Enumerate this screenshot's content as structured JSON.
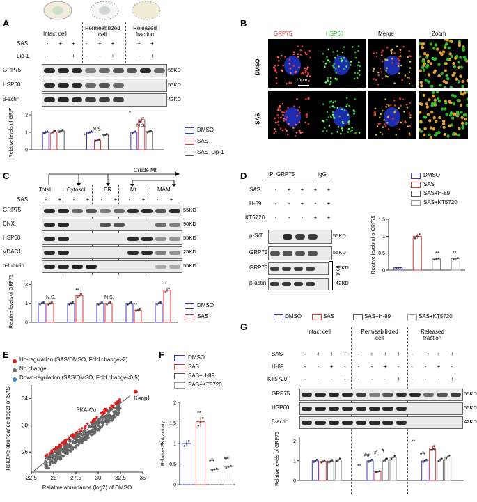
{
  "panelA": {
    "label": "A",
    "groups": [
      "Intact cell",
      "Permeabilized cell",
      "Released fraction"
    ],
    "row_sas": "SAS",
    "row_lip": "Lip-1",
    "sas_marks": [
      "-",
      "+",
      "+",
      "-",
      "+",
      "+",
      "-",
      "+",
      "+"
    ],
    "lip_marks": [
      "-",
      "-",
      "+",
      "-",
      "-",
      "+",
      "-",
      "-",
      "+"
    ],
    "blots": [
      "GRP75",
      "HSP60",
      "β-actin"
    ],
    "kd": [
      "55KD",
      "55KD",
      "42KD"
    ],
    "legend": [
      "DMSO",
      "SAS",
      "SAS+Lip-1"
    ],
    "sig": [
      "*",
      "N.S.",
      "*",
      "N.S."
    ]
  },
  "panelB": {
    "label": "B",
    "columns": [
      "GRP75",
      "HSP60",
      "Merge",
      "Zoom"
    ],
    "rows": [
      "DMSO",
      "SAS"
    ],
    "scale": "10μm"
  },
  "panelC": {
    "label": "C",
    "top": "Crude Mt",
    "groups": [
      "Total",
      "Cytosol",
      "ER",
      "Mt",
      "MAM"
    ],
    "row_sas": "SAS",
    "sas_marks": [
      "-",
      "+",
      "-",
      "+",
      "-",
      "+",
      "-",
      "+",
      "-",
      "+"
    ],
    "blots": [
      "GRP75",
      "CNX",
      "HSP60",
      "VDAC1",
      "α-tubulin"
    ],
    "kd": [
      "55KD",
      "90KD",
      "55KD",
      "25KD",
      "55KD"
    ],
    "legend": [
      "DMSO",
      "SAS"
    ],
    "sig": [
      "N.S.",
      "**",
      "N.S.",
      "**",
      "**"
    ]
  },
  "panelD": {
    "label": "D",
    "ip": "IP: GRP75",
    "igg": "IgG",
    "rows": [
      "SAS",
      "H-89",
      "KT5720"
    ],
    "sas_marks": [
      "-",
      "+",
      "+",
      "+",
      "+"
    ],
    "h89_marks": [
      "-",
      "-",
      "+",
      "-",
      "+"
    ],
    "kt_marks": [
      "-",
      "-",
      "-",
      "+",
      "+"
    ],
    "blots": [
      "p-S/T",
      "GRP75",
      "GRP75",
      "β-actin"
    ],
    "kd": [
      "55KD",
      "55KD",
      "55KD",
      "42KD"
    ],
    "input": "Input",
    "legend": [
      "DMSO",
      "SAS",
      "SAS+H-89",
      "SAS+KT5720"
    ],
    "sig": [
      "**",
      "**"
    ]
  },
  "panelE": {
    "label": "E",
    "legend": [
      "Up-regulation  (SAS/DMSO, Fold change>2)",
      "No change",
      "Down-regulation  (SAS/DMSO, Fold change<0.5)"
    ],
    "annotations": [
      "Keap1",
      "PKA-Cα"
    ]
  },
  "panelF": {
    "label": "F",
    "legend": [
      "DMSO",
      "SAS",
      "SAS+H-89",
      "SAS+KT5720"
    ],
    "sig": [
      "**",
      "##",
      "##"
    ]
  },
  "panelG": {
    "label": "G",
    "legend": [
      "DMSO",
      "SAS",
      "SAS+H-89",
      "SAS+KT5720"
    ],
    "groups": [
      "Intact cell",
      "Permeabili-zed cell",
      "Released fraction"
    ],
    "rows": [
      "SAS",
      "H-89",
      "KT5720"
    ],
    "sas_marks": [
      "-",
      "+",
      "+",
      "+",
      "-",
      "+",
      "+",
      "+",
      "-",
      "+",
      "+",
      "+"
    ],
    "h89_marks": [
      "-",
      "-",
      "+",
      "-",
      "-",
      "-",
      "+",
      "-",
      "-",
      "-",
      "+",
      "-"
    ],
    "kt_marks": [
      "-",
      "-",
      "-",
      "+",
      "-",
      "-",
      "-",
      "+",
      "-",
      "-",
      "-",
      "+"
    ],
    "blots": [
      "GRP75",
      "HSP60",
      "β-actin"
    ],
    "kd": [
      "55KD",
      "55KD",
      "42KD"
    ],
    "sig": [
      "**",
      "##",
      "#",
      "#",
      "**",
      "##",
      "#"
    ]
  },
  "colors": {
    "dmso": "#3a3ad0",
    "sas": "#e03535",
    "h89": "#555555",
    "kt": "#999999",
    "up": "#d62020",
    "none": "#666666",
    "down": "#3a7fd0"
  },
  "chart_data": [
    {
      "type": "bar",
      "panel": "A",
      "ylabel": "Relative levels of GRP75",
      "yticks": [
        0,
        1,
        2
      ],
      "ylim": [
        0,
        2.2
      ],
      "categories": [
        "Intact cell",
        "Permeabilized cell",
        "Released fraction"
      ],
      "series": [
        {
          "name": "DMSO",
          "values": [
            1.0,
            1.0,
            1.0
          ]
        },
        {
          "name": "SAS",
          "values": [
            1.02,
            0.55,
            1.72
          ]
        },
        {
          "name": "SAS+Lip-1",
          "values": [
            1.08,
            0.85,
            1.05
          ]
        }
      ]
    },
    {
      "type": "bar",
      "panel": "C",
      "ylabel": "Relative levels of GRP75",
      "yticks": [
        0,
        1,
        2
      ],
      "ylim": [
        0,
        2.2
      ],
      "categories": [
        "Total",
        "Cytosol",
        "ER",
        "Mt",
        "MAM"
      ],
      "series": [
        {
          "name": "DMSO",
          "values": [
            1.0,
            1.0,
            1.0,
            1.0,
            1.0
          ]
        },
        {
          "name": "SAS",
          "values": [
            1.0,
            1.42,
            1.0,
            0.65,
            1.7
          ]
        }
      ]
    },
    {
      "type": "bar",
      "panel": "D",
      "ylabel": "Relative levels of p-GRP75",
      "yticks": [
        0.0,
        0.5,
        1.0,
        1.5
      ],
      "ylim": [
        0,
        1.5
      ],
      "categories": [
        "DMSO",
        "SAS",
        "SAS+H-89",
        "SAS+KT5720"
      ],
      "values": [
        0.07,
        1.0,
        0.33,
        0.34
      ]
    },
    {
      "type": "scatter",
      "panel": "E",
      "xlabel": "Relative abundance (log2) of DMSO",
      "ylabel": "Relative abundance (log2) of SAS",
      "xticks": [
        22.5,
        25,
        27.5,
        30,
        32.5,
        35
      ],
      "yticks": [
        26,
        30,
        34
      ],
      "xlim": [
        22.5,
        35
      ],
      "ylim": [
        23,
        36
      ],
      "highlights": [
        {
          "name": "Keap1",
          "x": 34.2,
          "y": 35.0
        },
        {
          "name": "PKA-Cα",
          "x": 30.8,
          "y": 32.3
        }
      ]
    },
    {
      "type": "bar",
      "panel": "F",
      "ylabel": "Relative PKA activity",
      "yticks": [
        0.0,
        0.5,
        1.0,
        1.5,
        2.0
      ],
      "ylim": [
        0,
        2.0
      ],
      "categories": [
        "DMSO",
        "SAS",
        "SAS+H-89",
        "SAS+KT5720"
      ],
      "values": [
        1.0,
        1.53,
        0.37,
        0.43
      ]
    },
    {
      "type": "bar",
      "panel": "G",
      "ylabel": "Relative levels of GRP75",
      "yticks": [
        0,
        1,
        2
      ],
      "ylim": [
        0,
        2.2
      ],
      "categories": [
        "Intact cell",
        "Permeabili-zed cell",
        "Released fraction"
      ],
      "series": [
        {
          "name": "DMSO",
          "values": [
            1.0,
            1.0,
            1.0
          ]
        },
        {
          "name": "SAS",
          "values": [
            0.97,
            0.45,
            1.65
          ]
        },
        {
          "name": "SAS+H-89",
          "values": [
            0.98,
            1.05,
            1.05
          ]
        },
        {
          "name": "SAS+KT5720",
          "values": [
            1.05,
            1.18,
            1.2
          ]
        }
      ]
    }
  ]
}
